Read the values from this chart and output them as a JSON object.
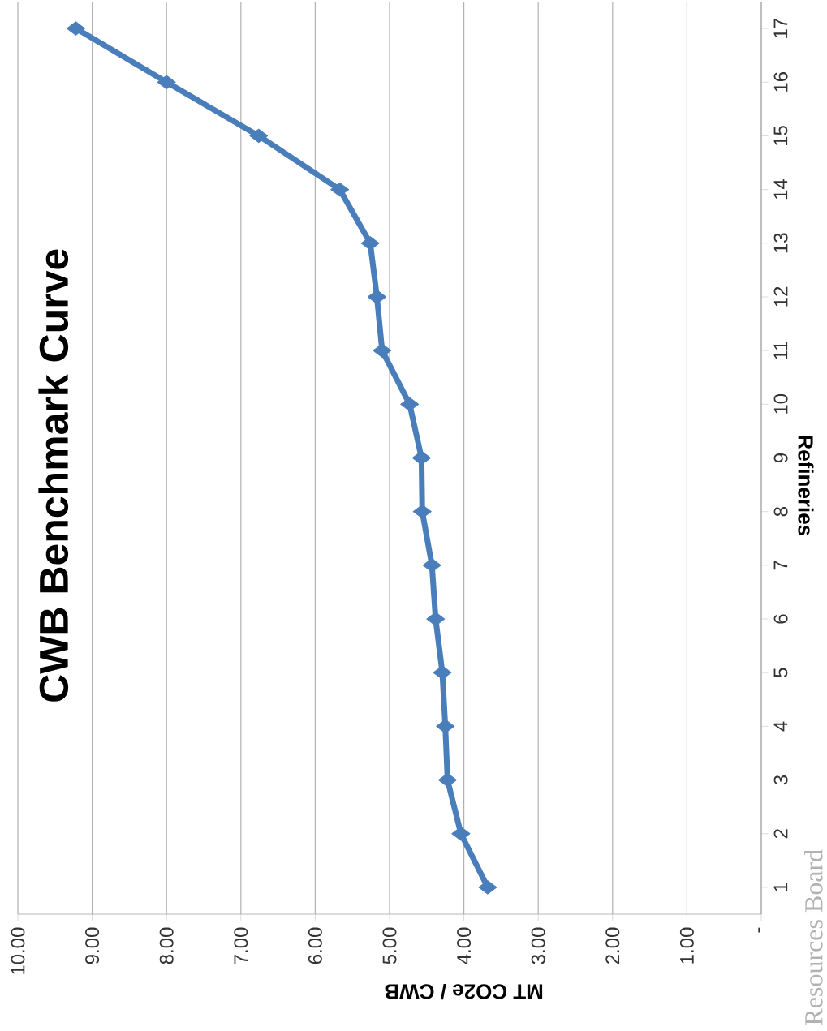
{
  "chart_data": {
    "type": "line",
    "orientation": "horizontal",
    "title": "CWB Benchmark Curve",
    "ylabel": "Refineries",
    "xlabel": "MT CO2e / CWB",
    "categories": [
      "17",
      "16",
      "15",
      "14",
      "13",
      "12",
      "11",
      "10",
      "9",
      "8",
      "7",
      "6",
      "5",
      "4",
      "3",
      "2",
      "1"
    ],
    "series": [
      {
        "color": "#4a7ebb",
        "values": [
          9.22,
          8.0,
          6.76,
          5.67,
          5.26,
          5.17,
          5.1,
          4.73,
          4.57,
          4.56,
          4.43,
          4.38,
          4.29,
          4.25,
          4.22,
          4.04,
          3.68
        ]
      }
    ],
    "xlim": [
      10,
      0
    ],
    "xticks": [
      {
        "value": 0,
        "label": "-"
      },
      {
        "value": 1,
        "label": "1.00"
      },
      {
        "value": 2,
        "label": "2.00"
      },
      {
        "value": 3,
        "label": "3.00"
      },
      {
        "value": 4,
        "label": "4.00"
      },
      {
        "value": 5,
        "label": "5.00"
      },
      {
        "value": 6,
        "label": "6.00"
      },
      {
        "value": 7,
        "label": "7.00"
      },
      {
        "value": 8,
        "label": "8.00"
      },
      {
        "value": 9,
        "label": "9.00"
      },
      {
        "value": 10,
        "label": "10.00"
      }
    ],
    "grid": "x",
    "marker": "diamond",
    "line_style": "solid",
    "annotations": [
      "Resources Board"
    ]
  }
}
